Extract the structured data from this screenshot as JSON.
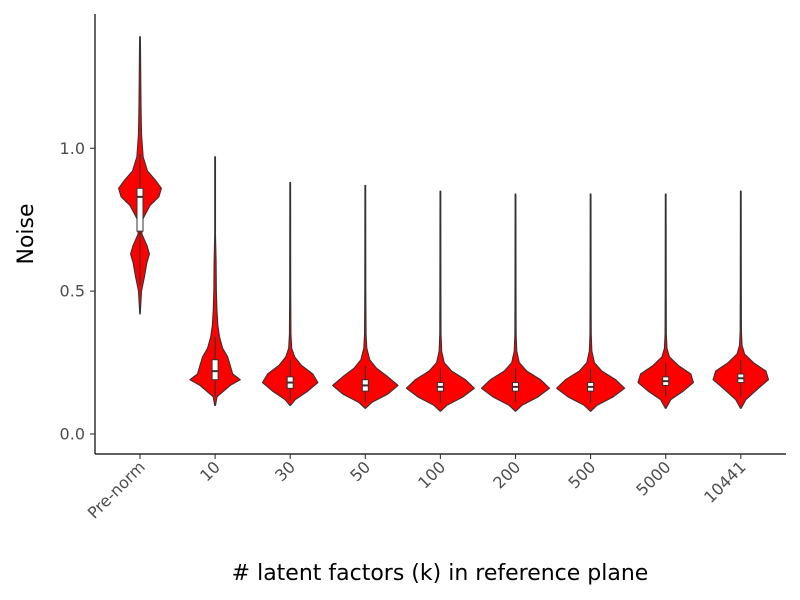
{
  "chart_data": {
    "type": "violin",
    "title": "",
    "xlabel": "# latent factors (k) in reference plane",
    "ylabel": "Noise",
    "categories": [
      "Pre-norm",
      "10",
      "30",
      "50",
      "100",
      "200",
      "500",
      "5000",
      "10441"
    ],
    "ylim": [
      -0.07,
      1.47
    ],
    "yticks": [
      0.0,
      0.5,
      1.0
    ],
    "ytick_labels": [
      "0.0",
      "0.5",
      "1.0"
    ],
    "grid": false,
    "legend": "none",
    "fill_color": "#ff0000",
    "outline_color": "#333333",
    "box_fill_color": "#ffffff",
    "violins": [
      {
        "category": "Pre-norm",
        "min": 0.42,
        "max": 1.39,
        "q1": 0.71,
        "median": 0.83,
        "q3": 0.86,
        "whisker_low": 0.52,
        "whisker_high": 0.98,
        "density": [
          [
            0.42,
            0.2
          ],
          [
            0.5,
            1.2
          ],
          [
            0.55,
            3.5
          ],
          [
            0.6,
            5.5
          ],
          [
            0.63,
            7.5
          ],
          [
            0.66,
            5.5
          ],
          [
            0.7,
            1.5
          ],
          [
            0.75,
            2.0
          ],
          [
            0.8,
            8.0
          ],
          [
            0.83,
            15.0
          ],
          [
            0.86,
            17.0
          ],
          [
            0.89,
            12.0
          ],
          [
            0.92,
            6.0
          ],
          [
            0.97,
            2.5
          ],
          [
            1.05,
            1.2
          ],
          [
            1.15,
            0.8
          ],
          [
            1.3,
            0.5
          ],
          [
            1.39,
            0.3
          ]
        ]
      },
      {
        "category": "10",
        "min": 0.1,
        "max": 0.97,
        "q1": 0.19,
        "median": 0.22,
        "q3": 0.26,
        "whisker_low": 0.13,
        "whisker_high": 0.34,
        "density": [
          [
            0.1,
            0.3
          ],
          [
            0.13,
            1.5
          ],
          [
            0.17,
            12.0
          ],
          [
            0.19,
            20.0
          ],
          [
            0.21,
            14.0
          ],
          [
            0.24,
            12.0
          ],
          [
            0.27,
            10.0
          ],
          [
            0.3,
            6.0
          ],
          [
            0.34,
            3.5
          ],
          [
            0.38,
            2.2
          ],
          [
            0.43,
            1.5
          ],
          [
            0.5,
            1.0
          ],
          [
            0.6,
            0.8
          ],
          [
            0.66,
            0.5
          ],
          [
            0.7,
            0.3
          ],
          [
            0.97,
            0.3
          ]
        ]
      },
      {
        "category": "30",
        "min": 0.1,
        "max": 0.88,
        "q1": 0.16,
        "median": 0.18,
        "q3": 0.2,
        "whisker_low": 0.12,
        "whisker_high": 0.26,
        "density": [
          [
            0.1,
            0.3
          ],
          [
            0.12,
            4.0
          ],
          [
            0.15,
            14.0
          ],
          [
            0.18,
            22.0
          ],
          [
            0.21,
            18.0
          ],
          [
            0.24,
            9.0
          ],
          [
            0.27,
            3.5
          ],
          [
            0.3,
            1.2
          ],
          [
            0.35,
            0.6
          ],
          [
            0.5,
            0.4
          ],
          [
            0.88,
            0.3
          ]
        ]
      },
      {
        "category": "50",
        "min": 0.09,
        "max": 0.87,
        "q1": 0.15,
        "median": 0.17,
        "q3": 0.19,
        "whisker_low": 0.11,
        "whisker_high": 0.24,
        "density": [
          [
            0.09,
            0.3
          ],
          [
            0.11,
            5.0
          ],
          [
            0.14,
            18.0
          ],
          [
            0.17,
            26.0
          ],
          [
            0.2,
            18.0
          ],
          [
            0.23,
            9.0
          ],
          [
            0.26,
            3.5
          ],
          [
            0.3,
            1.2
          ],
          [
            0.35,
            0.6
          ],
          [
            0.5,
            0.4
          ],
          [
            0.87,
            0.3
          ]
        ]
      },
      {
        "category": "100",
        "min": 0.08,
        "max": 0.85,
        "q1": 0.15,
        "median": 0.165,
        "q3": 0.18,
        "whisker_low": 0.11,
        "whisker_high": 0.23,
        "density": [
          [
            0.08,
            0.3
          ],
          [
            0.1,
            5.0
          ],
          [
            0.13,
            18.0
          ],
          [
            0.16,
            27.0
          ],
          [
            0.19,
            20.0
          ],
          [
            0.22,
            9.0
          ],
          [
            0.25,
            3.0
          ],
          [
            0.29,
            1.0
          ],
          [
            0.35,
            0.5
          ],
          [
            0.5,
            0.4
          ],
          [
            0.85,
            0.3
          ]
        ]
      },
      {
        "category": "200",
        "min": 0.08,
        "max": 0.84,
        "q1": 0.15,
        "median": 0.165,
        "q3": 0.18,
        "whisker_low": 0.11,
        "whisker_high": 0.23,
        "density": [
          [
            0.08,
            0.3
          ],
          [
            0.1,
            5.0
          ],
          [
            0.13,
            18.0
          ],
          [
            0.16,
            27.0
          ],
          [
            0.19,
            20.0
          ],
          [
            0.22,
            9.0
          ],
          [
            0.25,
            3.0
          ],
          [
            0.29,
            1.0
          ],
          [
            0.35,
            0.5
          ],
          [
            0.5,
            0.4
          ],
          [
            0.84,
            0.3
          ]
        ]
      },
      {
        "category": "500",
        "min": 0.08,
        "max": 0.84,
        "q1": 0.15,
        "median": 0.165,
        "q3": 0.18,
        "whisker_low": 0.11,
        "whisker_high": 0.23,
        "density": [
          [
            0.08,
            0.3
          ],
          [
            0.1,
            5.0
          ],
          [
            0.13,
            18.0
          ],
          [
            0.16,
            27.0
          ],
          [
            0.19,
            20.0
          ],
          [
            0.22,
            9.0
          ],
          [
            0.25,
            3.0
          ],
          [
            0.29,
            1.0
          ],
          [
            0.35,
            0.5
          ],
          [
            0.5,
            0.4
          ],
          [
            0.84,
            0.3
          ]
        ]
      },
      {
        "category": "5000",
        "min": 0.09,
        "max": 0.84,
        "q1": 0.17,
        "median": 0.185,
        "q3": 0.2,
        "whisker_low": 0.13,
        "whisker_high": 0.25,
        "density": [
          [
            0.09,
            0.3
          ],
          [
            0.12,
            4.0
          ],
          [
            0.15,
            14.0
          ],
          [
            0.18,
            22.0
          ],
          [
            0.21,
            20.0
          ],
          [
            0.24,
            10.0
          ],
          [
            0.27,
            3.0
          ],
          [
            0.3,
            1.0
          ],
          [
            0.35,
            0.5
          ],
          [
            0.5,
            0.4
          ],
          [
            0.84,
            0.3
          ]
        ]
      },
      {
        "category": "10441",
        "min": 0.09,
        "max": 0.85,
        "q1": 0.18,
        "median": 0.195,
        "q3": 0.21,
        "whisker_low": 0.13,
        "whisker_high": 0.26,
        "density": [
          [
            0.09,
            0.3
          ],
          [
            0.12,
            4.0
          ],
          [
            0.16,
            14.0
          ],
          [
            0.19,
            22.0
          ],
          [
            0.22,
            20.0
          ],
          [
            0.25,
            10.0
          ],
          [
            0.28,
            3.0
          ],
          [
            0.31,
            1.0
          ],
          [
            0.36,
            0.5
          ],
          [
            0.5,
            0.4
          ],
          [
            0.85,
            0.3
          ]
        ]
      }
    ]
  }
}
